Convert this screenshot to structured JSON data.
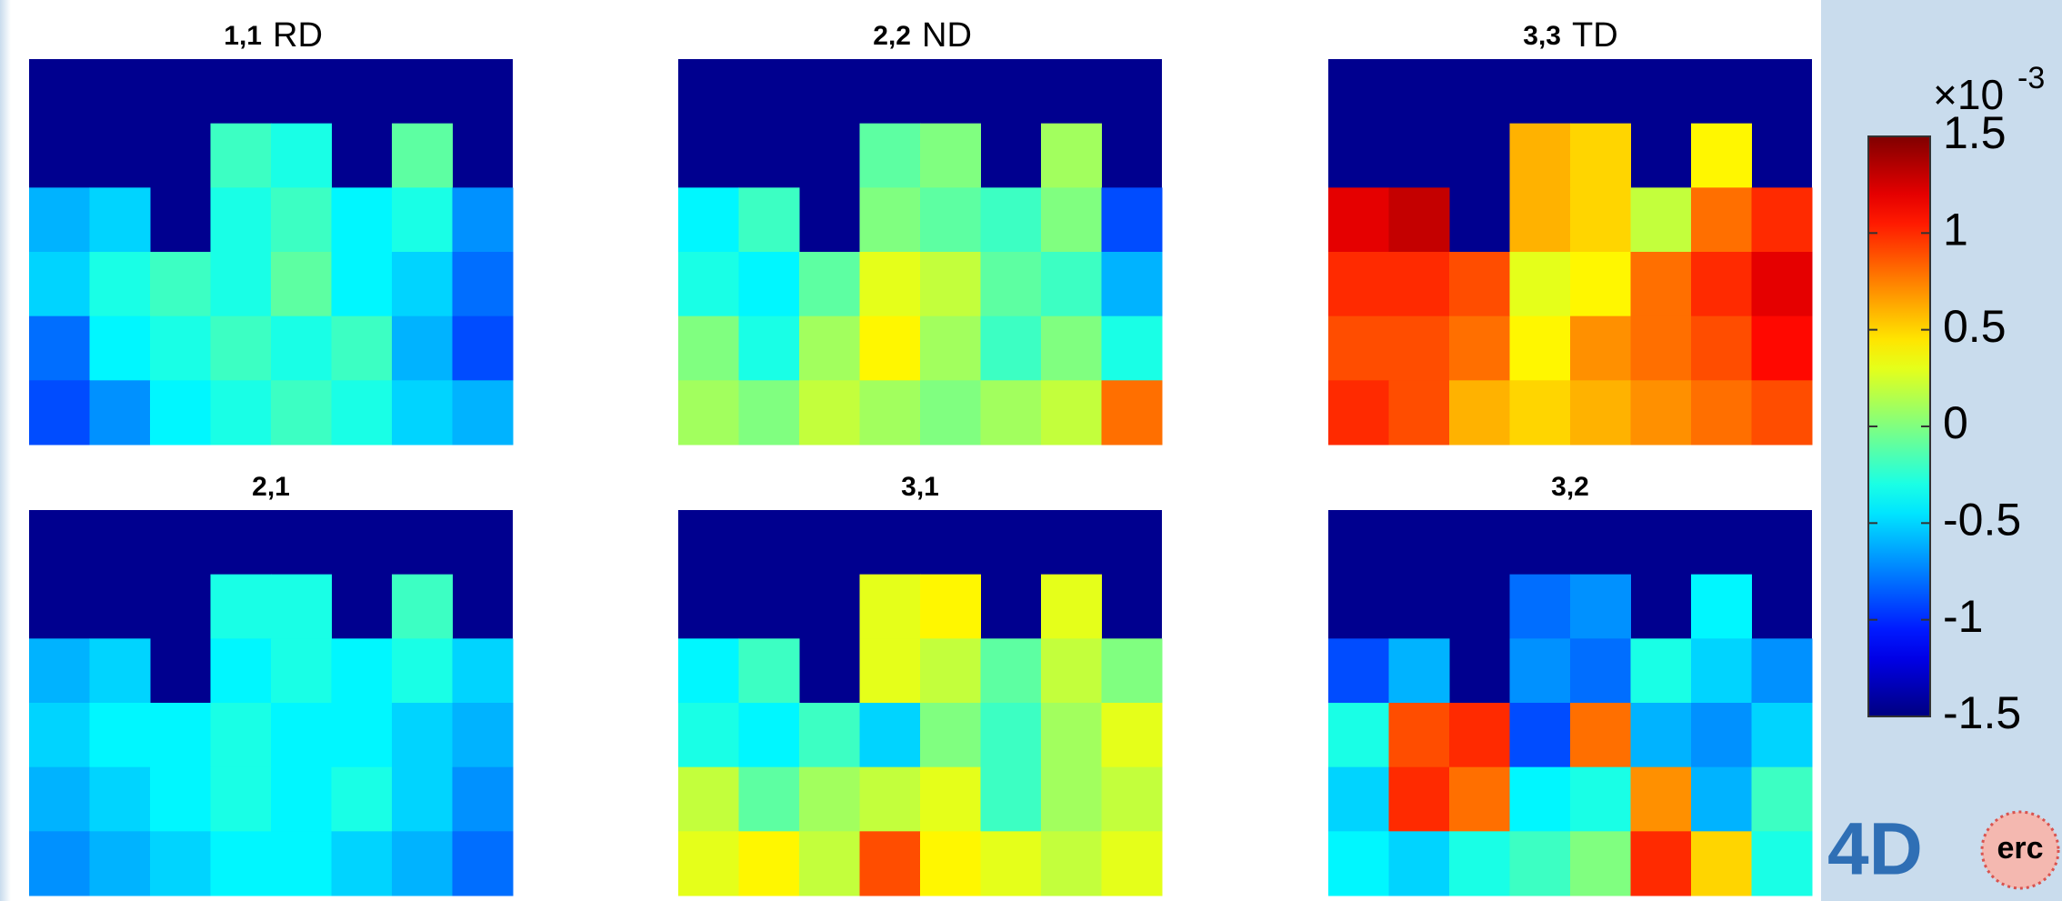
{
  "chart_data": [
    {
      "type": "heatmap",
      "title": "1,1",
      "subtitle": "RD",
      "z": [
        [
          null,
          null,
          null,
          null,
          null,
          null,
          null,
          null
        ],
        [
          null,
          null,
          null,
          -0.2,
          -0.3,
          null,
          -0.1,
          null
        ],
        [
          -0.6,
          -0.5,
          null,
          -0.3,
          -0.2,
          -0.4,
          -0.3,
          -0.7
        ],
        [
          -0.5,
          -0.3,
          -0.2,
          -0.3,
          -0.1,
          -0.4,
          -0.5,
          -0.8
        ],
        [
          -0.8,
          -0.4,
          -0.3,
          -0.2,
          -0.3,
          -0.2,
          -0.6,
          -0.9
        ],
        [
          -0.9,
          -0.7,
          -0.4,
          -0.3,
          -0.2,
          -0.3,
          -0.5,
          -0.6
        ]
      ]
    },
    {
      "type": "heatmap",
      "title": "2,2",
      "subtitle": "ND",
      "z": [
        [
          null,
          null,
          null,
          null,
          null,
          null,
          null,
          null
        ],
        [
          null,
          null,
          null,
          -0.1,
          0.0,
          null,
          0.1,
          null
        ],
        [
          -0.4,
          -0.2,
          null,
          0.0,
          -0.1,
          -0.2,
          0.0,
          -0.9
        ],
        [
          -0.3,
          -0.4,
          -0.1,
          0.3,
          0.2,
          -0.1,
          -0.2,
          -0.6
        ],
        [
          0.0,
          -0.3,
          0.1,
          0.4,
          0.1,
          -0.2,
          0.0,
          -0.3
        ],
        [
          0.1,
          0.0,
          0.2,
          0.1,
          0.0,
          0.1,
          0.2,
          0.8
        ]
      ]
    },
    {
      "type": "heatmap",
      "title": "3,3",
      "subtitle": "TD",
      "z": [
        [
          null,
          null,
          null,
          null,
          null,
          null,
          null,
          null
        ],
        [
          null,
          null,
          null,
          0.6,
          0.5,
          null,
          0.4,
          null
        ],
        [
          1.2,
          1.3,
          null,
          0.6,
          0.5,
          0.2,
          0.8,
          1.0
        ],
        [
          1.0,
          1.0,
          0.9,
          0.3,
          0.4,
          0.8,
          1.0,
          1.2
        ],
        [
          0.9,
          0.9,
          0.8,
          0.4,
          0.7,
          0.8,
          0.9,
          1.1
        ],
        [
          1.0,
          0.9,
          0.6,
          0.5,
          0.6,
          0.7,
          0.8,
          0.9
        ]
      ]
    },
    {
      "type": "heatmap",
      "title": "2,1",
      "z": [
        [
          null,
          null,
          null,
          null,
          null,
          null,
          null,
          null
        ],
        [
          null,
          null,
          null,
          -0.3,
          -0.3,
          null,
          -0.2,
          null
        ],
        [
          -0.6,
          -0.5,
          null,
          -0.4,
          -0.3,
          -0.4,
          -0.3,
          -0.5
        ],
        [
          -0.5,
          -0.4,
          -0.4,
          -0.3,
          -0.4,
          -0.4,
          -0.5,
          -0.6
        ],
        [
          -0.6,
          -0.5,
          -0.4,
          -0.3,
          -0.4,
          -0.3,
          -0.5,
          -0.7
        ],
        [
          -0.7,
          -0.6,
          -0.5,
          -0.4,
          -0.4,
          -0.5,
          -0.6,
          -0.8
        ]
      ]
    },
    {
      "type": "heatmap",
      "title": "3,1",
      "z": [
        [
          null,
          null,
          null,
          null,
          null,
          null,
          null,
          null
        ],
        [
          null,
          null,
          null,
          0.3,
          0.4,
          null,
          0.3,
          null
        ],
        [
          -0.4,
          -0.2,
          null,
          0.3,
          0.2,
          -0.1,
          0.2,
          0.0
        ],
        [
          -0.3,
          -0.4,
          -0.2,
          -0.5,
          0.0,
          -0.2,
          0.1,
          0.3
        ],
        [
          0.2,
          -0.1,
          0.1,
          0.2,
          0.3,
          -0.2,
          0.1,
          0.2
        ],
        [
          0.3,
          0.4,
          0.2,
          0.9,
          0.4,
          0.3,
          0.2,
          0.3
        ]
      ]
    },
    {
      "type": "heatmap",
      "title": "3,2",
      "z": [
        [
          null,
          null,
          null,
          null,
          null,
          null,
          null,
          null
        ],
        [
          null,
          null,
          null,
          -0.8,
          -0.7,
          null,
          -0.4,
          null
        ],
        [
          -0.9,
          -0.6,
          null,
          -0.7,
          -0.8,
          -0.3,
          -0.5,
          -0.7
        ],
        [
          -0.3,
          0.9,
          1.0,
          -0.9,
          0.8,
          -0.6,
          -0.7,
          -0.5
        ],
        [
          -0.5,
          1.0,
          0.8,
          -0.4,
          -0.3,
          0.7,
          -0.6,
          -0.2
        ],
        [
          -0.4,
          -0.5,
          -0.3,
          -0.2,
          0.0,
          1.0,
          0.5,
          -0.3
        ]
      ]
    }
  ],
  "colorbar": {
    "clim": [
      -1.5,
      1.5
    ],
    "ticks": [
      -1.5,
      -1,
      -0.5,
      0,
      0.5,
      1,
      1.5
    ],
    "scale_label": "×10",
    "scale_exponent": "-3",
    "colormap": "jet",
    "background_color": "#00008f"
  },
  "logo": {
    "mark": "4D",
    "badge": "erc"
  }
}
